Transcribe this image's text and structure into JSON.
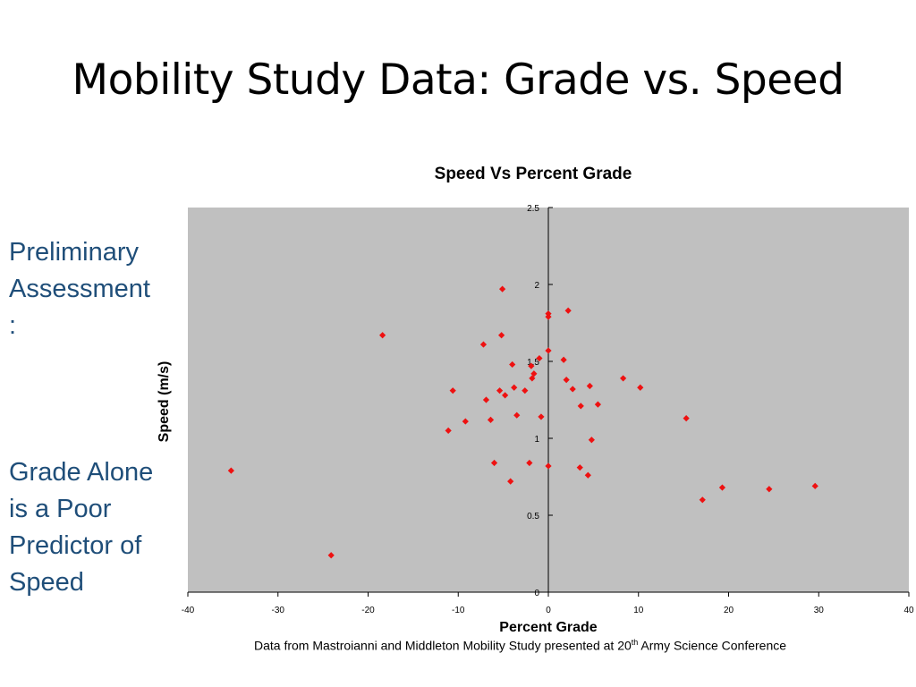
{
  "slide": {
    "title": "Mobility Study Data: Grade vs. Speed",
    "side_text_1": [
      "Preliminary",
      "Assessment",
      ":"
    ],
    "side_text_2": [
      "Grade Alone",
      "is a Poor",
      "Predictor of",
      "Speed"
    ],
    "caption": {
      "before": "Data from Mastroianni and Middleton Mobility Study presented at 20",
      "sup": "th",
      "after": " Army Science Conference"
    }
  },
  "colors": {
    "plot_background": "#c0c0c0",
    "marker": "#ee1111",
    "side_text": "#1f4e79"
  },
  "chart_data": {
    "type": "scatter",
    "title": "Speed Vs Percent Grade",
    "xlabel": "Percent Grade",
    "ylabel": "Speed (m/s)",
    "xlim": [
      -40,
      40
    ],
    "ylim": [
      0,
      2.5
    ],
    "xticks": [
      -40,
      -30,
      -20,
      -10,
      0,
      10,
      20,
      30,
      40
    ],
    "yticks": [
      0,
      0.5,
      1,
      1.5,
      2,
      2.5
    ],
    "grid": false,
    "legend": "none",
    "marker": "diamond",
    "points": [
      {
        "x": -35.2,
        "y": 0.79
      },
      {
        "x": -24.1,
        "y": 0.24
      },
      {
        "x": -18.4,
        "y": 1.67
      },
      {
        "x": -11.1,
        "y": 1.05
      },
      {
        "x": -10.6,
        "y": 1.31
      },
      {
        "x": -9.2,
        "y": 1.11
      },
      {
        "x": -7.2,
        "y": 1.61
      },
      {
        "x": -6.9,
        "y": 1.25
      },
      {
        "x": -6.4,
        "y": 1.12
      },
      {
        "x": -6.0,
        "y": 0.84
      },
      {
        "x": -5.4,
        "y": 1.31
      },
      {
        "x": -5.2,
        "y": 1.67
      },
      {
        "x": -5.1,
        "y": 1.97
      },
      {
        "x": -4.8,
        "y": 1.28
      },
      {
        "x": -4.2,
        "y": 0.72
      },
      {
        "x": -4.0,
        "y": 1.48
      },
      {
        "x": -3.8,
        "y": 1.33
      },
      {
        "x": -3.5,
        "y": 1.15
      },
      {
        "x": -2.6,
        "y": 1.31
      },
      {
        "x": -2.1,
        "y": 0.84
      },
      {
        "x": -1.9,
        "y": 1.47
      },
      {
        "x": -1.8,
        "y": 1.39
      },
      {
        "x": -1.6,
        "y": 1.42
      },
      {
        "x": -1.0,
        "y": 1.52
      },
      {
        "x": -0.8,
        "y": 1.14
      },
      {
        "x": 0.0,
        "y": 0.82
      },
      {
        "x": 0.0,
        "y": 1.57
      },
      {
        "x": 0.0,
        "y": 1.79
      },
      {
        "x": 0.0,
        "y": 1.81
      },
      {
        "x": 1.7,
        "y": 1.51
      },
      {
        "x": 2.0,
        "y": 1.38
      },
      {
        "x": 2.2,
        "y": 1.83
      },
      {
        "x": 2.7,
        "y": 1.32
      },
      {
        "x": 3.5,
        "y": 0.81
      },
      {
        "x": 3.6,
        "y": 1.21
      },
      {
        "x": 4.4,
        "y": 0.76
      },
      {
        "x": 4.6,
        "y": 1.34
      },
      {
        "x": 4.8,
        "y": 0.99
      },
      {
        "x": 5.5,
        "y": 1.22
      },
      {
        "x": 8.3,
        "y": 1.39
      },
      {
        "x": 10.2,
        "y": 1.33
      },
      {
        "x": 15.3,
        "y": 1.13
      },
      {
        "x": 17.1,
        "y": 0.6
      },
      {
        "x": 19.3,
        "y": 0.68
      },
      {
        "x": 24.5,
        "y": 0.67
      },
      {
        "x": 29.6,
        "y": 0.69
      }
    ]
  }
}
